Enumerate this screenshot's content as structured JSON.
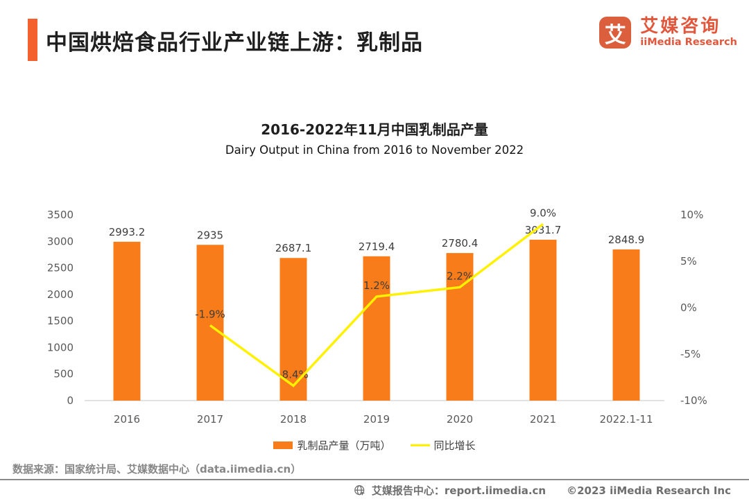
{
  "header": {
    "title": "中国烘焙食品行业产业链上游：乳制品",
    "accent_color": "#F4612E"
  },
  "logo": {
    "glyph": "艾",
    "icon_bg": "#DC5F3D",
    "text_color": "#E2573B",
    "name_cn": "艾媒咨询",
    "name_en": "iiMedia Research"
  },
  "chart_data": {
    "type": "bar",
    "title_cn": "2016-2022年11月中国乳制品产量",
    "title_en": "Dairy Output in China from 2016 to November 2022",
    "categories": [
      "2016",
      "2017",
      "2018",
      "2019",
      "2020",
      "2021",
      "2022.1-11"
    ],
    "series": [
      {
        "name": "乳制品产量（万吨）",
        "type": "bar",
        "color": "#F87C1A",
        "values": [
          2993.2,
          2935,
          2687.1,
          2719.4,
          2780.4,
          3031.7,
          2848.9
        ],
        "labels": [
          "2993.2",
          "2935",
          "2687.1",
          "2719.4",
          "2780.4",
          "3031.7",
          "2848.9"
        ]
      },
      {
        "name": "同比增长",
        "type": "line",
        "color": "#FFF100",
        "values": [
          null,
          -1.9,
          -8.4,
          1.2,
          2.2,
          9.0,
          null
        ],
        "labels": [
          "",
          "-1.9%",
          "-8.4%",
          "1.2%",
          "2.2%",
          "9.0%",
          ""
        ]
      }
    ],
    "left_axis": {
      "min": 0,
      "max": 3500,
      "step": 500,
      "ticks": [
        "0",
        "500",
        "1000",
        "1500",
        "2000",
        "2500",
        "3000",
        "3500"
      ]
    },
    "right_axis": {
      "min": -10,
      "max": 10,
      "step": 5,
      "ticks": [
        "-10%",
        "-5%",
        "0%",
        "5%",
        "10%"
      ]
    },
    "grid": false,
    "legend_position": "bottom"
  },
  "footer": {
    "source": "数据来源：国家统计局、艾媒数据中心（data.iimedia.cn）"
  },
  "bottombar": {
    "report_center": "艾媒报告中心：report.iimedia.cn",
    "copyright": "©2023 iiMedia Research  Inc"
  }
}
